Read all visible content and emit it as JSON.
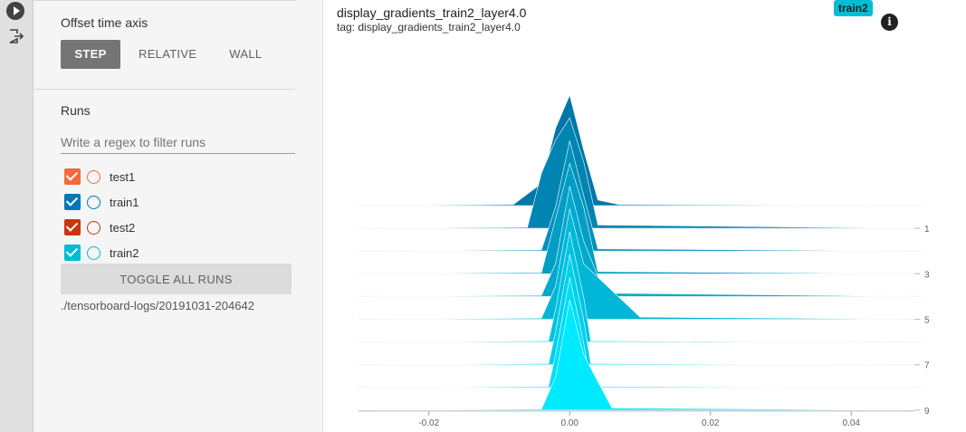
{
  "sidebar": {
    "play_icon": "play-icon",
    "logout_icon": "exit-icon"
  },
  "offset": {
    "title": "Offset time axis",
    "buttons": [
      {
        "label": "STEP",
        "active": true
      },
      {
        "label": "RELATIVE",
        "active": false
      },
      {
        "label": "WALL",
        "active": false
      }
    ]
  },
  "runs": {
    "title": "Runs",
    "filter_placeholder": "Write a regex to filter runs",
    "items": [
      {
        "label": "test1",
        "color": "#f26b3a",
        "checked": true
      },
      {
        "label": "train1",
        "color": "#0077bb",
        "checked": true
      },
      {
        "label": "test2",
        "color": "#cc3311",
        "checked": true
      },
      {
        "label": "train2",
        "color": "#00bcd4",
        "checked": true
      }
    ],
    "toggle_label": "TOGGLE ALL RUNS",
    "logdir": "./tensorboard-logs/20191031-204642"
  },
  "card": {
    "title": "display_gradients_train2_layer4.0",
    "tag": "tag: display_gradients_train2_layer4.0",
    "run_badge": "train2",
    "info_icon": "info-icon"
  },
  "chart_data": {
    "type": "area",
    "subtype": "histogram-offset",
    "x_ticks": [
      "-0.02",
      "0.00",
      "0.02",
      "0.04"
    ],
    "x_tick_values": [
      -0.02,
      0.0,
      0.02,
      0.04
    ],
    "y_ticks": [
      "1",
      "3",
      "5",
      "7",
      "9"
    ],
    "y_tick_values": [
      1,
      3,
      5,
      7,
      9
    ],
    "steps": [
      0,
      1,
      2,
      3,
      4,
      5,
      6,
      7,
      8,
      9
    ],
    "xlim": [
      -0.03,
      0.05
    ],
    "color_start": "#0077a8",
    "color_end": "#00eaff",
    "series": [
      {
        "step": 0,
        "x": [
          -0.03,
          -0.008,
          -0.004,
          -0.002,
          0.0,
          0.002,
          0.004,
          0.007,
          0.05
        ],
        "y": [
          0,
          0.01,
          0.2,
          0.7,
          1.0,
          0.5,
          0.05,
          0.01,
          0
        ]
      },
      {
        "step": 1,
        "x": [
          -0.03,
          -0.006,
          -0.004,
          -0.002,
          0.0,
          0.002,
          0.004,
          0.05
        ],
        "y": [
          0,
          0.01,
          0.5,
          0.8,
          1.0,
          0.6,
          0.03,
          0
        ]
      },
      {
        "step": 2,
        "x": [
          -0.03,
          -0.004,
          -0.002,
          0.0,
          0.002,
          0.004,
          0.05
        ],
        "y": [
          0,
          0.01,
          0.4,
          1.0,
          0.5,
          0.02,
          0
        ]
      },
      {
        "step": 3,
        "x": [
          -0.03,
          -0.004,
          -0.002,
          0.0,
          0.002,
          0.004,
          0.05
        ],
        "y": [
          0,
          0.01,
          0.5,
          1.0,
          0.6,
          0.02,
          0
        ]
      },
      {
        "step": 4,
        "x": [
          -0.03,
          -0.004,
          -0.002,
          0.0,
          0.002,
          0.005,
          0.05
        ],
        "y": [
          0,
          0.01,
          0.3,
          1.0,
          0.5,
          0.03,
          0
        ]
      },
      {
        "step": 5,
        "x": [
          -0.03,
          -0.004,
          -0.002,
          0.0,
          0.002,
          0.01,
          0.05
        ],
        "y": [
          0,
          0.01,
          0.3,
          1.0,
          0.5,
          0.02,
          0
        ]
      },
      {
        "step": 6,
        "x": [
          -0.03,
          -0.003,
          -0.002,
          0.0,
          0.002,
          0.003,
          0.05
        ],
        "y": [
          0,
          0.01,
          0.3,
          1.0,
          0.4,
          0.01,
          0
        ]
      },
      {
        "step": 7,
        "x": [
          -0.03,
          -0.003,
          -0.002,
          0.0,
          0.002,
          0.003,
          0.05
        ],
        "y": [
          0,
          0.01,
          0.3,
          1.0,
          0.4,
          0.01,
          0
        ]
      },
      {
        "step": 8,
        "x": [
          -0.03,
          -0.003,
          -0.002,
          0.0,
          0.002,
          0.003,
          0.05
        ],
        "y": [
          0,
          0.01,
          0.3,
          1.0,
          0.4,
          0.01,
          0
        ]
      },
      {
        "step": 9,
        "x": [
          -0.03,
          -0.004,
          -0.002,
          0.0,
          0.002,
          0.006,
          0.05
        ],
        "y": [
          0,
          0.01,
          0.3,
          1.0,
          0.5,
          0.02,
          0
        ]
      }
    ]
  }
}
